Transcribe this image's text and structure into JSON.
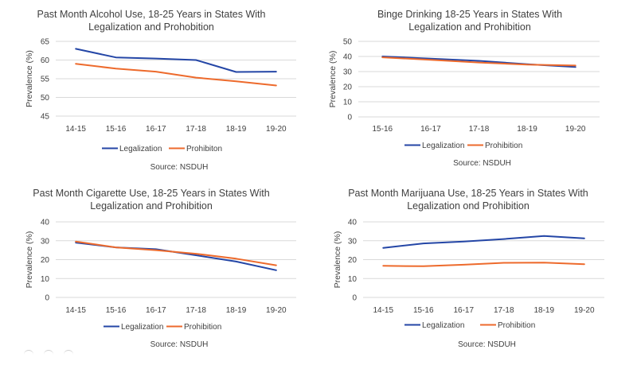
{
  "colors": {
    "legalization": "#2446a6",
    "prohibition": "#ed6a2c",
    "grid": "#d9d9d9",
    "text": "#404040"
  },
  "chart_data": [
    {
      "type": "line",
      "title": [
        "Past Month Alcohol Use, 18-25 Years in States With",
        "Legalization and Prohobition"
      ],
      "xlabel": "",
      "ylabel": "Prevalence (%)",
      "categories": [
        "14-15",
        "15-16",
        "16-17",
        "17-18",
        "18-19",
        "19-20"
      ],
      "ylim": [
        45,
        65
      ],
      "yticks": [
        45,
        50,
        55,
        60,
        65
      ],
      "grid": true,
      "legend": "bottom",
      "series": [
        {
          "name": "Legalization",
          "values": [
            63.0,
            60.7,
            60.4,
            60.0,
            56.8,
            56.9
          ]
        },
        {
          "name": "Prohibiton",
          "values": [
            59.0,
            57.7,
            56.9,
            55.3,
            54.3,
            53.2
          ]
        }
      ],
      "source": "Source: NSDUH"
    },
    {
      "type": "line",
      "title": [
        "Binge Drinking 18-25 Years in States With",
        "Legalization and Prohibition"
      ],
      "xlabel": "",
      "ylabel": "Prevalence (%)",
      "categories": [
        "15-16",
        "16-17",
        "17-18",
        "18-19",
        "19-20"
      ],
      "ylim": [
        0,
        50
      ],
      "yticks": [
        0,
        10,
        20,
        30,
        40,
        50
      ],
      "grid": true,
      "legend": "bottom",
      "series": [
        {
          "name": "Legalization",
          "values": [
            40.0,
            38.6,
            37.1,
            34.9,
            33.0
          ]
        },
        {
          "name": "Prohibition",
          "values": [
            39.4,
            37.8,
            36.0,
            34.6,
            34.0
          ]
        }
      ],
      "source": "Source: NSDUH"
    },
    {
      "type": "line",
      "title": [
        "Past Month Cigarette Use, 18-25 Years in States With",
        "Legalization and Prohibition"
      ],
      "xlabel": "",
      "ylabel": "Prevalence (%)",
      "categories": [
        "14-15",
        "15-16",
        "16-17",
        "17-18",
        "18-19",
        "19-20"
      ],
      "ylim": [
        0,
        40
      ],
      "yticks": [
        0,
        10,
        20,
        30,
        40
      ],
      "grid": true,
      "legend": "bottom",
      "series": [
        {
          "name": "Legalization",
          "values": [
            29.0,
            26.5,
            25.5,
            22.3,
            19.0,
            14.4
          ]
        },
        {
          "name": "Prohibition",
          "values": [
            29.6,
            26.5,
            25.0,
            23.1,
            20.5,
            17.0
          ]
        }
      ],
      "source": "Source: NSDUH"
    },
    {
      "type": "line",
      "title": [
        "Past Month Marijuana Use, 18-25 Years in States With",
        "Legalization ond Prohibition"
      ],
      "xlabel": "",
      "ylabel": "Prevalence (%)",
      "categories": [
        "14-15",
        "15-16",
        "16-17",
        "17-18",
        "18-19",
        "19-20"
      ],
      "ylim": [
        0,
        40
      ],
      "yticks": [
        0,
        10,
        20,
        30,
        40
      ],
      "grid": true,
      "legend": "bottom",
      "series": [
        {
          "name": "Legalization",
          "values": [
            26.2,
            28.6,
            29.6,
            30.9,
            32.5,
            31.3
          ]
        },
        {
          "name": "Prohibition",
          "values": [
            16.7,
            16.5,
            17.3,
            18.3,
            18.4,
            17.6
          ]
        }
      ],
      "source": "Source: NSDUH"
    }
  ]
}
